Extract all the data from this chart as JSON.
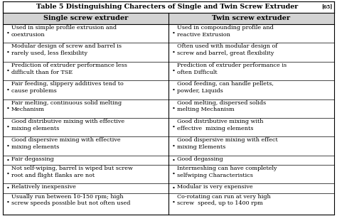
{
  "title": "Table 5 Distinguishing Charecters of Single and Twin Screw Extruder ",
  "title_superscript": "[65]",
  "col1_header": "Single screw extruder",
  "col2_header": "Twin screw extruder",
  "col1_items": [
    "Used in simple profile extrusion and\ncoextrusion",
    "Modular design of screw and barrel is\nrarely used, less flexibility",
    "Prediction of extruder performance less\ndifficult than for TSE",
    "Fair feeding, slippery additives tend to\ncause problems",
    "Fair melting, continuous solid melting\nMechanism",
    "Good distributive mixing with effective\nmixing elements",
    "Good dispersive mixing with effective\nmixing elements",
    "Fair degassing",
    "Not self-wiping, barrel is wiped but screw\nroot and flight flanks are not",
    "Relatively inexpensive",
    "Usually run between 10-150 rpm; high\nscrew speeds possible but not often used"
  ],
  "col2_items": [
    "Used in compounding profile and\nreactive Extrusion",
    "Often used with modular design of\nscrew and barrel, great flexibility",
    "Prediction of extruder performance is\noften Difficult",
    "Good feeding, can handle pellets,\npowder, Liquids",
    "Good melting, dispersed solids\nmelting Mechanism",
    "Good distributive mixing with\neffective  mixing elements",
    "Good dispersive mixing with effect\nmixing Elements",
    "Good degassing",
    "Intermeshing can have completely\nselfwiping Characteristics",
    "Modular is very expensive",
    "Co-rotating can run at very high\nscrew  speed, up to 1400 rpm"
  ],
  "bg_color": "#ffffff",
  "header_bg": "#d3d3d3",
  "border_color": "#000000",
  "text_color": "#000000",
  "font_size": 5.8,
  "title_font_size": 6.8,
  "header_font_size": 7.0
}
